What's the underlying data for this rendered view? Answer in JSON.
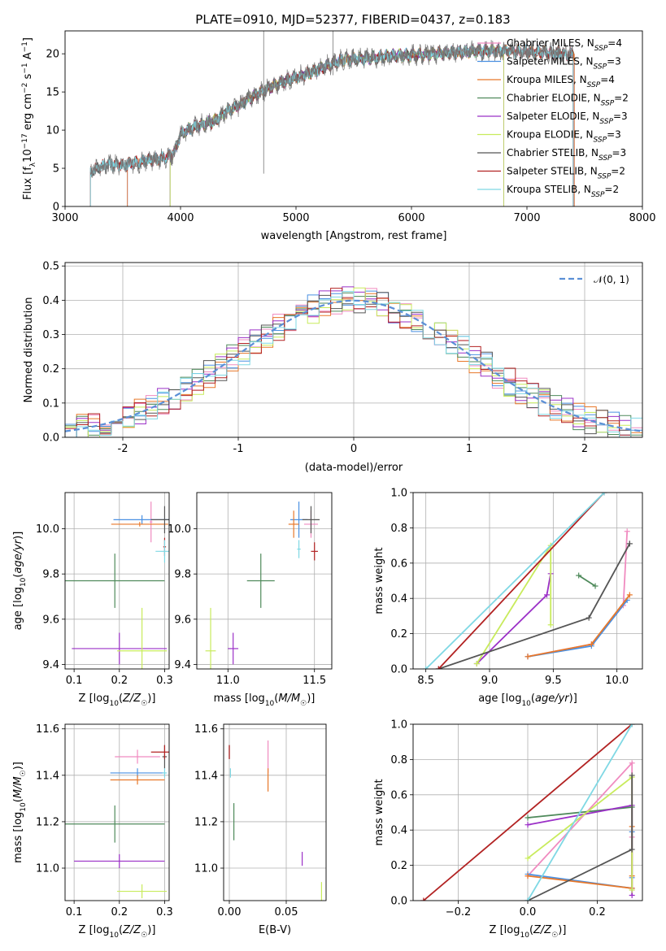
{
  "title": "PLATE=0910, MJD=52377, FIBERID=0437, z=0.183",
  "colors": {
    "chabrier_miles": "#f08bc0",
    "salpeter_miles": "#4a90e2",
    "kroupa_miles": "#e8782a",
    "chabrier_elodie": "#4f8a5b",
    "salpeter_elodie": "#9b30c7",
    "kroupa_elodie": "#c8eb5c",
    "chabrier_stelib": "#555555",
    "salpeter_stelib": "#b22222",
    "kroupa_stelib": "#7fd8e4",
    "normal_curve": "#5b8fd6",
    "spectrum_data": "#777777",
    "grid": "#b0b0b0"
  },
  "chart_data": [
    {
      "id": "spectrum",
      "type": "line",
      "title": "PLATE=0910, MJD=52377, FIBERID=0437, z=0.183",
      "xlabel": "wavelength [Angstrom, rest frame]",
      "ylabel": "Flux [f_λ10^-17 erg cm^-2 s^-1 A^-1]",
      "xlim": [
        3000,
        8000
      ],
      "ylim": [
        0,
        23
      ],
      "xticks": [
        "3000",
        "4000",
        "5000",
        "6000",
        "7000",
        "8000"
      ],
      "yticks": [
        "0",
        "5",
        "10",
        "15",
        "20"
      ],
      "grid": false,
      "legend_position": "top-right",
      "legend": [
        "Chabrier MILES, N_SSP=4",
        "Salpeter MILES, N_SSP=3",
        "Kroupa MILES, N_SSP=4",
        "Chabrier ELODIE, N_SSP=2",
        "Salpeter ELODIE, N_SSP=3",
        "Kroupa ELODIE, N_SSP=3",
        "Chabrier STELIB, N_SSP=3",
        "Salpeter STELIB, N_SSP=2",
        "Kroupa STELIB, N_SSP=2"
      ],
      "continuum": {
        "x": [
          3220,
          3300,
          3400,
          3500,
          3600,
          3700,
          3800,
          3900,
          3950,
          4000,
          4100,
          4200,
          4300,
          4400,
          4500,
          4600,
          4700,
          4800,
          4900,
          5000,
          5100,
          5200,
          5300,
          5400,
          5500,
          5600,
          5700,
          5800,
          5900,
          6000,
          6200,
          6400,
          6600,
          6800,
          7000,
          7200,
          7400
        ],
        "y": [
          4.5,
          5.2,
          5.5,
          5.4,
          5.7,
          6.0,
          6.2,
          6.5,
          7.2,
          9.5,
          10.3,
          10.8,
          11.2,
          12.5,
          13.2,
          14.2,
          15.0,
          15.8,
          16.4,
          16.9,
          17.4,
          18.0,
          18.6,
          19.2,
          19.3,
          19.4,
          19.5,
          19.7,
          19.8,
          19.8,
          20.0,
          20.2,
          20.4,
          20.4,
          20.3,
          20.1,
          19.9
        ]
      },
      "spikes": [
        {
          "x": 4720,
          "from": 4.3,
          "to": 23
        },
        {
          "x": 5320,
          "from": 17.2,
          "to": 23
        }
      ],
      "series_ranges": [
        {
          "name": "Chabrier MILES, N_SSP=4",
          "xmin": 3540,
          "xmax": 7410
        },
        {
          "name": "Salpeter MILES, N_SSP=3",
          "xmin": 3540,
          "xmax": 7410
        },
        {
          "name": "Kroupa MILES, N_SSP=4",
          "xmin": 3540,
          "xmax": 7410
        },
        {
          "name": "Chabrier ELODIE, N_SSP=2",
          "xmin": 3910,
          "xmax": 6800
        },
        {
          "name": "Salpeter ELODIE, N_SSP=3",
          "xmin": 3910,
          "xmax": 6800
        },
        {
          "name": "Kroupa ELODIE, N_SSP=3",
          "xmin": 3910,
          "xmax": 6800
        },
        {
          "name": "Chabrier STELIB, N_SSP=3",
          "xmin": 3220,
          "xmax": 7400
        },
        {
          "name": "Salpeter STELIB, N_SSP=2",
          "xmin": 3220,
          "xmax": 7400
        },
        {
          "name": "Kroupa STELIB, N_SSP=2",
          "xmin": 3220,
          "xmax": 7400
        }
      ]
    },
    {
      "id": "residuals",
      "type": "line",
      "xlabel": "(data-model)/error",
      "ylabel": "Normed distribution",
      "xlim": [
        -2.5,
        2.5
      ],
      "ylim": [
        0,
        0.51
      ],
      "xticks": [
        -2,
        -1,
        0,
        1,
        2
      ],
      "yticks": [
        0.0,
        0.1,
        0.2,
        0.3,
        0.4,
        0.5
      ],
      "grid": true,
      "legend_position": "top-right",
      "legend": [
        "𝒩(0, 1)"
      ],
      "normal": {
        "mean": 0,
        "sigma": 1
      },
      "histogram_bin_width": 0.1,
      "histogram_note": "step histograms, one per model, each approximating the normal curve"
    },
    {
      "id": "age-vs-Z",
      "type": "scatter",
      "xlabel": "Z [log10(Z/Z☉)]",
      "ylabel": "age  [log10(age/yr)]",
      "xlim": [
        0.08,
        0.31
      ],
      "ylim": [
        9.38,
        10.16
      ],
      "xticks": [
        0.1,
        0.2,
        0.3
      ],
      "yticks": [
        9.4,
        9.6,
        9.8,
        10.0
      ],
      "grid": true,
      "points": [
        {
          "model": "Chabrier MILES",
          "x": 0.27,
          "y": 10.03,
          "xerr": 0.003,
          "yerr": 0.09
        },
        {
          "model": "Salpeter MILES",
          "x": 0.25,
          "y": 10.04,
          "xerr": 0.063,
          "yerr": 0.02
        },
        {
          "model": "Kroupa MILES",
          "x": 0.245,
          "y": 10.02,
          "xerr": 0.063,
          "yerr": 0.01
        },
        {
          "model": "Chabrier ELODIE",
          "x": 0.19,
          "y": 9.77,
          "xerr": 0.11,
          "yerr": 0.12
        },
        {
          "model": "Salpeter ELODIE",
          "x": 0.2,
          "y": 9.47,
          "xerr": 0.105,
          "yerr": 0.07
        },
        {
          "model": "Kroupa ELODIE",
          "x": 0.25,
          "y": 9.46,
          "xerr": 0.055,
          "yerr": 0.19
        },
        {
          "model": "Chabrier STELIB",
          "x": 0.3,
          "y": 10.04,
          "xerr": 0.03,
          "yerr": 0.06
        },
        {
          "model": "Salpeter STELIB",
          "x": 0.3,
          "y": 9.92,
          "xerr": 0.003,
          "yerr": 0.04
        },
        {
          "model": "Kroupa STELIB",
          "x": 0.3,
          "y": 9.9,
          "xerr": 0.02,
          "yerr": 0.05
        }
      ]
    },
    {
      "id": "age-vs-mass",
      "type": "scatter",
      "xlabel": "mass [log10(M/M☉)]",
      "xlim": [
        10.82,
        11.6
      ],
      "ylim": [
        9.38,
        10.16
      ],
      "xticks": [
        11.0,
        11.5
      ],
      "yticks": [
        9.4,
        9.6,
        9.8,
        10.0
      ],
      "grid": true,
      "points": [
        {
          "model": "Chabrier MILES",
          "x": 11.48,
          "y": 10.02,
          "xerr": 0.04,
          "yerr": 0.06
        },
        {
          "model": "Salpeter MILES",
          "x": 11.41,
          "y": 10.04,
          "xerr": 0.05,
          "yerr": 0.08
        },
        {
          "model": "Kroupa MILES",
          "x": 11.38,
          "y": 10.02,
          "xerr": 0.03,
          "yerr": 0.06
        },
        {
          "model": "Chabrier ELODIE",
          "x": 11.19,
          "y": 9.77,
          "xerr": 0.08,
          "yerr": 0.12
        },
        {
          "model": "Salpeter ELODIE",
          "x": 11.03,
          "y": 9.47,
          "xerr": 0.03,
          "yerr": 0.07
        },
        {
          "model": "Kroupa ELODIE",
          "x": 10.9,
          "y": 9.46,
          "xerr": 0.03,
          "yerr": 0.19
        },
        {
          "model": "Chabrier STELIB",
          "x": 11.48,
          "y": 10.04,
          "xerr": 0.05,
          "yerr": 0.06
        },
        {
          "model": "Salpeter STELIB",
          "x": 11.5,
          "y": 9.9,
          "xerr": 0.02,
          "yerr": 0.04
        },
        {
          "model": "Kroupa STELIB",
          "x": 11.41,
          "y": 9.91,
          "xerr": 0.01,
          "yerr": 0.04
        }
      ]
    },
    {
      "id": "mass-weight-vs-age",
      "type": "line",
      "xlabel": "age  [log10(age/yr)]",
      "ylabel": "mass weight",
      "xlim": [
        8.4,
        10.2
      ],
      "ylim": [
        0,
        1
      ],
      "xticks": [
        8.5,
        9.0,
        9.5,
        10.0
      ],
      "yticks": [
        0.0,
        0.2,
        0.4,
        0.6,
        0.8,
        1.0
      ],
      "grid": true,
      "series": [
        {
          "name": "Chabrier MILES",
          "x": [
            9.3,
            9.8,
            10.05,
            10.08
          ],
          "y": [
            0.07,
            0.14,
            0.36,
            0.78
          ]
        },
        {
          "name": "Salpeter MILES",
          "x": [
            9.3,
            9.8,
            10.08
          ],
          "y": [
            0.07,
            0.13,
            0.39
          ]
        },
        {
          "name": "Kroupa MILES",
          "x": [
            9.3,
            9.8,
            10.1
          ],
          "y": [
            0.07,
            0.14,
            0.42
          ]
        },
        {
          "name": "Chabrier ELODIE",
          "x": [
            9.7,
            9.83
          ],
          "y": [
            0.53,
            0.47
          ]
        },
        {
          "name": "Salpeter ELODIE",
          "x": [
            8.9,
            9.45,
            9.48
          ],
          "y": [
            0.03,
            0.42,
            0.54
          ]
        },
        {
          "name": "Kroupa ELODIE",
          "x": [
            8.9,
            9.48,
            9.48
          ],
          "y": [
            0.03,
            0.7,
            0.25
          ]
        },
        {
          "name": "Chabrier STELIB",
          "x": [
            8.6,
            9.78,
            10.1,
            10.1
          ],
          "y": [
            0.0,
            0.29,
            0.71,
            0.71
          ]
        },
        {
          "name": "Salpeter STELIB",
          "x": [
            8.6,
            9.9
          ],
          "y": [
            0.0,
            1.0
          ]
        },
        {
          "name": "Kroupa STELIB",
          "x": [
            8.5,
            9.9
          ],
          "y": [
            0.0,
            1.0
          ]
        }
      ]
    },
    {
      "id": "mass-vs-Z",
      "type": "scatter",
      "xlabel": "Z [log10(Z/Z☉)]",
      "ylabel": "mass [log10(M/M☉)]",
      "xlim": [
        0.08,
        0.31
      ],
      "ylim": [
        10.86,
        11.62
      ],
      "xticks": [
        0.1,
        0.2,
        0.3
      ],
      "yticks": [
        11.0,
        11.2,
        11.4,
        11.6
      ],
      "grid": true,
      "points": [
        {
          "model": "Chabrier MILES",
          "x": 0.24,
          "y": 11.48,
          "xerr": 0.05,
          "yerr": 0.03
        },
        {
          "model": "Salpeter MILES",
          "x": 0.24,
          "y": 11.41,
          "xerr": 0.06,
          "yerr": 0.02
        },
        {
          "model": "Kroupa MILES",
          "x": 0.24,
          "y": 11.38,
          "xerr": 0.06,
          "yerr": 0.02
        },
        {
          "model": "Chabrier ELODIE",
          "x": 0.19,
          "y": 11.19,
          "xerr": 0.11,
          "yerr": 0.08
        },
        {
          "model": "Salpeter ELODIE",
          "x": 0.2,
          "y": 11.03,
          "xerr": 0.1,
          "yerr": 0.03
        },
        {
          "model": "Kroupa ELODIE",
          "x": 0.25,
          "y": 10.9,
          "xerr": 0.055,
          "yerr": 0.03
        },
        {
          "model": "Chabrier STELIB",
          "x": 0.3,
          "y": 11.48,
          "xerr": 0.005,
          "yerr": 0.05
        },
        {
          "model": "Salpeter STELIB",
          "x": 0.3,
          "y": 11.5,
          "xerr": 0.03,
          "yerr": 0.03
        },
        {
          "model": "Kroupa STELIB",
          "x": 0.3,
          "y": 11.41,
          "xerr": 0.005,
          "yerr": 0.02
        }
      ]
    },
    {
      "id": "mass-vs-ebv",
      "type": "scatter",
      "xlabel": "E(B-V)",
      "xlim": [
        -0.005,
        0.085
      ],
      "ylim": [
        10.86,
        11.62
      ],
      "xticks": [
        0.0,
        0.05
      ],
      "yticks": [
        11.0,
        11.2,
        11.4,
        11.6
      ],
      "grid": true,
      "points": [
        {
          "model": "Chabrier MILES",
          "x": 0.034,
          "y": 11.48,
          "xerr": 0.0,
          "yerr": 0.07
        },
        {
          "model": "Kroupa MILES",
          "x": 0.034,
          "y": 11.38,
          "xerr": 0.0,
          "yerr": 0.05
        },
        {
          "model": "Chabrier ELODIE",
          "x": 0.004,
          "y": 11.2,
          "xerr": 0.0,
          "yerr": 0.08
        },
        {
          "model": "Salpeter ELODIE",
          "x": 0.064,
          "y": 11.04,
          "xerr": 0.0,
          "yerr": 0.03
        },
        {
          "model": "Kroupa ELODIE",
          "x": 0.081,
          "y": 10.9,
          "xerr": 0.0,
          "yerr": 0.04
        },
        {
          "model": "Chabrier STELIB",
          "x": 0.0,
          "y": 11.5,
          "xerr": 0.0,
          "yerr": 0.03
        },
        {
          "model": "Salpeter STELIB",
          "x": 0.0,
          "y": 11.5,
          "xerr": 0.0,
          "yerr": 0.03
        },
        {
          "model": "Kroupa STELIB",
          "x": 0.001,
          "y": 11.41,
          "xerr": 0.0,
          "yerr": 0.02
        }
      ]
    },
    {
      "id": "mass-weight-vs-Z",
      "type": "line",
      "xlabel": "Z [log10(Z/Z☉)]",
      "ylabel": "mass weight",
      "xlim": [
        -0.33,
        0.33
      ],
      "ylim": [
        0,
        1
      ],
      "xticks": [
        -0.2,
        0.0,
        0.2
      ],
      "yticks": [
        0.0,
        0.2,
        0.4,
        0.6,
        0.8,
        1.0
      ],
      "grid": true,
      "series": [
        {
          "name": "Chabrier MILES",
          "x": [
            0.0,
            0.3,
            0.3,
            0.3
          ],
          "y": [
            0.14,
            0.78,
            0.36,
            0.07
          ]
        },
        {
          "name": "Salpeter MILES",
          "x": [
            0.0,
            0.3,
            0.3,
            0.3
          ],
          "y": [
            0.15,
            0.07,
            0.13,
            0.39
          ]
        },
        {
          "name": "Kroupa MILES",
          "x": [
            0.0,
            0.3,
            0.3,
            0.3
          ],
          "y": [
            0.14,
            0.07,
            0.14,
            0.42
          ]
        },
        {
          "name": "Chabrier ELODIE",
          "x": [
            0.0,
            0.3
          ],
          "y": [
            0.47,
            0.53
          ]
        },
        {
          "name": "Salpeter ELODIE",
          "x": [
            0.0,
            0.3,
            0.3
          ],
          "y": [
            0.43,
            0.54,
            0.03
          ]
        },
        {
          "name": "Kroupa ELODIE",
          "x": [
            0.0,
            0.3,
            0.3
          ],
          "y": [
            0.24,
            0.7,
            0.06
          ]
        },
        {
          "name": "Chabrier STELIB",
          "x": [
            0.0,
            0.3,
            0.3
          ],
          "y": [
            0.0,
            0.29,
            0.71
          ]
        },
        {
          "name": "Salpeter STELIB",
          "x": [
            -0.3,
            0.3
          ],
          "y": [
            0.0,
            1.0
          ]
        },
        {
          "name": "Kroupa STELIB",
          "x": [
            0.0,
            0.3
          ],
          "y": [
            0.0,
            1.0
          ]
        }
      ]
    }
  ]
}
